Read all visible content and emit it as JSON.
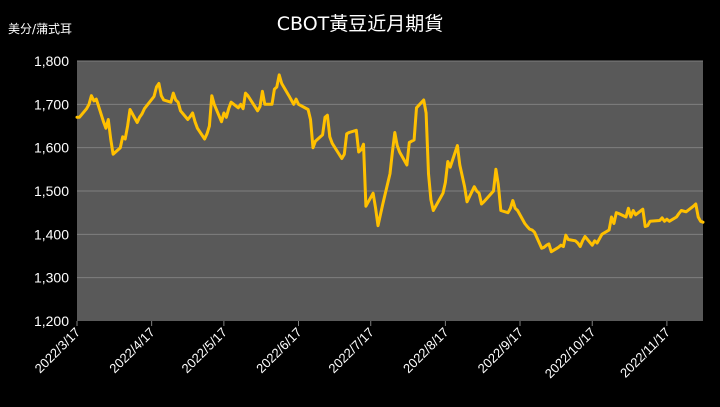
{
  "chart_data": {
    "type": "line",
    "title": "CBOT黃豆近月期貨",
    "ylabel": "美分/蒲式耳",
    "xlabel": "",
    "ylim": [
      1200,
      1800
    ],
    "yticks": [
      1200,
      1300,
      1400,
      1500,
      1600,
      1700,
      1800
    ],
    "ytick_labels": [
      "1,200",
      "1,300",
      "1,400",
      "1,500",
      "1,600",
      "1,700",
      "1,800"
    ],
    "xtick_labels": [
      "2022/3/17",
      "2022/4/17",
      "2022/5/17",
      "2022/6/17",
      "2022/7/17",
      "2022/8/17",
      "2022/9/17",
      "2022/10/17",
      "2022/11/17"
    ],
    "x_start": "2022/3/17",
    "x_end": "2022/12/2",
    "grid": true,
    "series": [
      {
        "color": "#FFC000",
        "points": [
          [
            "2022/3/17",
            1670
          ],
          [
            "2022/3/18",
            1670
          ],
          [
            "2022/3/21",
            1690
          ],
          [
            "2022/3/22",
            1700
          ],
          [
            "2022/3/23",
            1720
          ],
          [
            "2022/3/24",
            1708
          ],
          [
            "2022/3/25",
            1712
          ],
          [
            "2022/3/28",
            1660
          ],
          [
            "2022/3/29",
            1645
          ],
          [
            "2022/3/30",
            1665
          ],
          [
            "2022/3/31",
            1620
          ],
          [
            "2022/4/1",
            1585
          ],
          [
            "2022/4/4",
            1600
          ],
          [
            "2022/4/5",
            1625
          ],
          [
            "2022/4/6",
            1620
          ],
          [
            "2022/4/7",
            1650
          ],
          [
            "2022/4/8",
            1688
          ],
          [
            "2022/4/11",
            1658
          ],
          [
            "2022/4/12",
            1670
          ],
          [
            "2022/4/13",
            1678
          ],
          [
            "2022/4/14",
            1690
          ],
          [
            "2022/4/18",
            1718
          ],
          [
            "2022/4/19",
            1740
          ],
          [
            "2022/4/20",
            1748
          ],
          [
            "2022/4/21",
            1720
          ],
          [
            "2022/4/22",
            1710
          ],
          [
            "2022/4/25",
            1705
          ],
          [
            "2022/4/26",
            1726
          ],
          [
            "2022/4/27",
            1710
          ],
          [
            "2022/4/28",
            1705
          ],
          [
            "2022/4/29",
            1685
          ],
          [
            "2022/5/2",
            1665
          ],
          [
            "2022/5/3",
            1672
          ],
          [
            "2022/5/4",
            1680
          ],
          [
            "2022/5/5",
            1660
          ],
          [
            "2022/5/6",
            1645
          ],
          [
            "2022/5/9",
            1620
          ],
          [
            "2022/5/10",
            1632
          ],
          [
            "2022/5/11",
            1650
          ],
          [
            "2022/5/12",
            1720
          ],
          [
            "2022/5/13",
            1700
          ],
          [
            "2022/5/16",
            1660
          ],
          [
            "2022/5/17",
            1680
          ],
          [
            "2022/5/18",
            1670
          ],
          [
            "2022/5/19",
            1690
          ],
          [
            "2022/5/20",
            1705
          ],
          [
            "2022/5/23",
            1692
          ],
          [
            "2022/5/24",
            1700
          ],
          [
            "2022/5/25",
            1690
          ],
          [
            "2022/5/26",
            1726
          ],
          [
            "2022/5/27",
            1720
          ],
          [
            "2022/5/31",
            1685
          ],
          [
            "2022/6/1",
            1695
          ],
          [
            "2022/6/2",
            1730
          ],
          [
            "2022/6/3",
            1700
          ],
          [
            "2022/6/6",
            1700
          ],
          [
            "2022/6/7",
            1735
          ],
          [
            "2022/6/8",
            1740
          ],
          [
            "2022/6/9",
            1768
          ],
          [
            "2022/6/10",
            1748
          ],
          [
            "2022/6/13",
            1720
          ],
          [
            "2022/6/14",
            1710
          ],
          [
            "2022/6/15",
            1700
          ],
          [
            "2022/6/16",
            1712
          ],
          [
            "2022/6/17",
            1700
          ],
          [
            "2022/6/21",
            1688
          ],
          [
            "2022/6/22",
            1665
          ],
          [
            "2022/6/23",
            1600
          ],
          [
            "2022/6/24",
            1615
          ],
          [
            "2022/6/27",
            1630
          ],
          [
            "2022/6/28",
            1670
          ],
          [
            "2022/6/29",
            1675
          ],
          [
            "2022/6/30",
            1625
          ],
          [
            "2022/7/1",
            1610
          ],
          [
            "2022/7/5",
            1575
          ],
          [
            "2022/7/6",
            1585
          ],
          [
            "2022/7/7",
            1632
          ],
          [
            "2022/7/8",
            1635
          ],
          [
            "2022/7/11",
            1640
          ],
          [
            "2022/7/12",
            1590
          ],
          [
            "2022/7/13",
            1595
          ],
          [
            "2022/7/14",
            1608
          ],
          [
            "2022/7/15",
            1465
          ],
          [
            "2022/7/18",
            1495
          ],
          [
            "2022/7/19",
            1460
          ],
          [
            "2022/7/20",
            1420
          ],
          [
            "2022/7/21",
            1445
          ],
          [
            "2022/7/22",
            1470
          ],
          [
            "2022/7/25",
            1540
          ],
          [
            "2022/7/26",
            1590
          ],
          [
            "2022/7/27",
            1635
          ],
          [
            "2022/7/28",
            1605
          ],
          [
            "2022/7/29",
            1590
          ],
          [
            "2022/8/1",
            1560
          ],
          [
            "2022/8/2",
            1612
          ],
          [
            "2022/8/3",
            1615
          ],
          [
            "2022/8/4",
            1618
          ],
          [
            "2022/8/5",
            1692
          ],
          [
            "2022/8/8",
            1710
          ],
          [
            "2022/8/9",
            1680
          ],
          [
            "2022/8/10",
            1540
          ],
          [
            "2022/8/11",
            1480
          ],
          [
            "2022/8/12",
            1455
          ],
          [
            "2022/8/15",
            1485
          ],
          [
            "2022/8/16",
            1495
          ],
          [
            "2022/8/17",
            1520
          ],
          [
            "2022/8/18",
            1568
          ],
          [
            "2022/8/19",
            1555
          ],
          [
            "2022/8/22",
            1605
          ],
          [
            "2022/8/23",
            1560
          ],
          [
            "2022/8/24",
            1535
          ],
          [
            "2022/8/25",
            1510
          ],
          [
            "2022/8/26",
            1475
          ],
          [
            "2022/8/29",
            1510
          ],
          [
            "2022/8/30",
            1500
          ],
          [
            "2022/8/31",
            1495
          ],
          [
            "2022/9/1",
            1470
          ],
          [
            "2022/9/2",
            1475
          ],
          [
            "2022/9/6",
            1500
          ],
          [
            "2022/9/7",
            1550
          ],
          [
            "2022/9/8",
            1515
          ],
          [
            "2022/9/9",
            1455
          ],
          [
            "2022/9/12",
            1450
          ],
          [
            "2022/9/13",
            1460
          ],
          [
            "2022/9/14",
            1478
          ],
          [
            "2022/9/15",
            1460
          ],
          [
            "2022/9/16",
            1455
          ],
          [
            "2022/9/19",
            1425
          ],
          [
            "2022/9/20",
            1418
          ],
          [
            "2022/9/21",
            1412
          ],
          [
            "2022/9/22",
            1410
          ],
          [
            "2022/9/23",
            1405
          ],
          [
            "2022/9/26",
            1368
          ],
          [
            "2022/9/27",
            1370
          ],
          [
            "2022/9/28",
            1375
          ],
          [
            "2022/9/29",
            1378
          ],
          [
            "2022/9/30",
            1360
          ],
          [
            "2022/10/3",
            1370
          ],
          [
            "2022/10/4",
            1375
          ],
          [
            "2022/10/5",
            1372
          ],
          [
            "2022/10/6",
            1398
          ],
          [
            "2022/10/7",
            1388
          ],
          [
            "2022/10/10",
            1385
          ],
          [
            "2022/10/11",
            1380
          ],
          [
            "2022/10/12",
            1372
          ],
          [
            "2022/10/13",
            1385
          ],
          [
            "2022/10/14",
            1395
          ],
          [
            "2022/10/17",
            1375
          ],
          [
            "2022/10/18",
            1385
          ],
          [
            "2022/10/19",
            1380
          ],
          [
            "2022/10/20",
            1390
          ],
          [
            "2022/10/21",
            1400
          ],
          [
            "2022/10/24",
            1410
          ],
          [
            "2022/10/25",
            1440
          ],
          [
            "2022/10/26",
            1425
          ],
          [
            "2022/10/27",
            1450
          ],
          [
            "2022/10/28",
            1448
          ],
          [
            "2022/10/31",
            1440
          ],
          [
            "2022/11/1",
            1460
          ],
          [
            "2022/11/2",
            1440
          ],
          [
            "2022/11/3",
            1455
          ],
          [
            "2022/11/4",
            1445
          ],
          [
            "2022/11/7",
            1458
          ],
          [
            "2022/11/8",
            1418
          ],
          [
            "2022/11/9",
            1420
          ],
          [
            "2022/11/10",
            1430
          ],
          [
            "2022/11/14",
            1432
          ],
          [
            "2022/11/15",
            1438
          ],
          [
            "2022/11/16",
            1430
          ],
          [
            "2022/11/17",
            1435
          ],
          [
            "2022/11/18",
            1430
          ],
          [
            "2022/11/21",
            1440
          ],
          [
            "2022/11/22",
            1448
          ],
          [
            "2022/11/23",
            1455
          ],
          [
            "2022/11/25",
            1452
          ],
          [
            "2022/11/28",
            1465
          ],
          [
            "2022/11/29",
            1470
          ],
          [
            "2022/11/30",
            1440
          ],
          [
            "2022/12/1",
            1430
          ],
          [
            "2022/12/2",
            1428
          ]
        ]
      }
    ]
  },
  "colors": {
    "background": "#000000",
    "plot_area": "#595959",
    "gridline": "#7F7F7F",
    "line": "#FFC000",
    "text": "#FFFFFF"
  }
}
